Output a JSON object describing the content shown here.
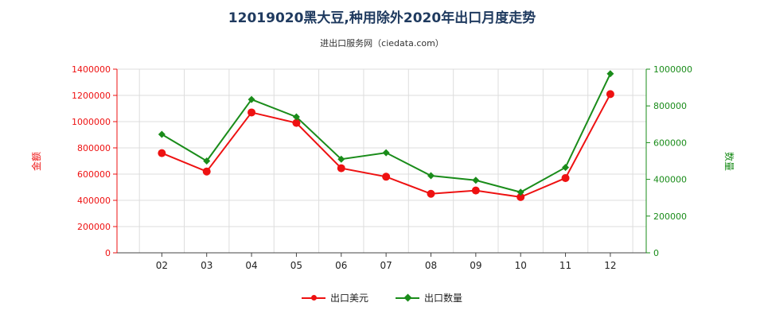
{
  "header": {
    "title": "12019020黑大豆,种用除外2020年出口月度走势",
    "subtitle": "进出口服务网（ciedata.com）"
  },
  "chart_data": {
    "type": "line",
    "categories": [
      "02",
      "03",
      "04",
      "05",
      "06",
      "07",
      "08",
      "09",
      "10",
      "11",
      "12"
    ],
    "series": [
      {
        "name": "出口美元",
        "axis": "left",
        "color": "#ee1111",
        "marker": "circle",
        "values": [
          760000,
          620000,
          1070000,
          990000,
          645000,
          580000,
          450000,
          475000,
          425000,
          570000,
          1210000
        ]
      },
      {
        "name": "出口数量",
        "axis": "right",
        "color": "#1a8c1a",
        "marker": "diamond",
        "values": [
          645000,
          500000,
          835000,
          740000,
          510000,
          545000,
          420000,
          395000,
          330000,
          465000,
          975000
        ]
      }
    ],
    "y_left": {
      "label": "金额",
      "min": 0,
      "max": 1400000,
      "ticks": [
        "0",
        "200000",
        "400000",
        "600000",
        "800000",
        "1000000",
        "1200000",
        "1400000"
      ],
      "color": "#ee1111"
    },
    "y_right": {
      "label": "数量",
      "min": 0,
      "max": 1000000,
      "ticks": [
        "0",
        "200000",
        "400000",
        "600000",
        "800000",
        "1000000"
      ],
      "color": "#1a8c1a"
    },
    "grid": true,
    "legend": "bottom-center"
  }
}
